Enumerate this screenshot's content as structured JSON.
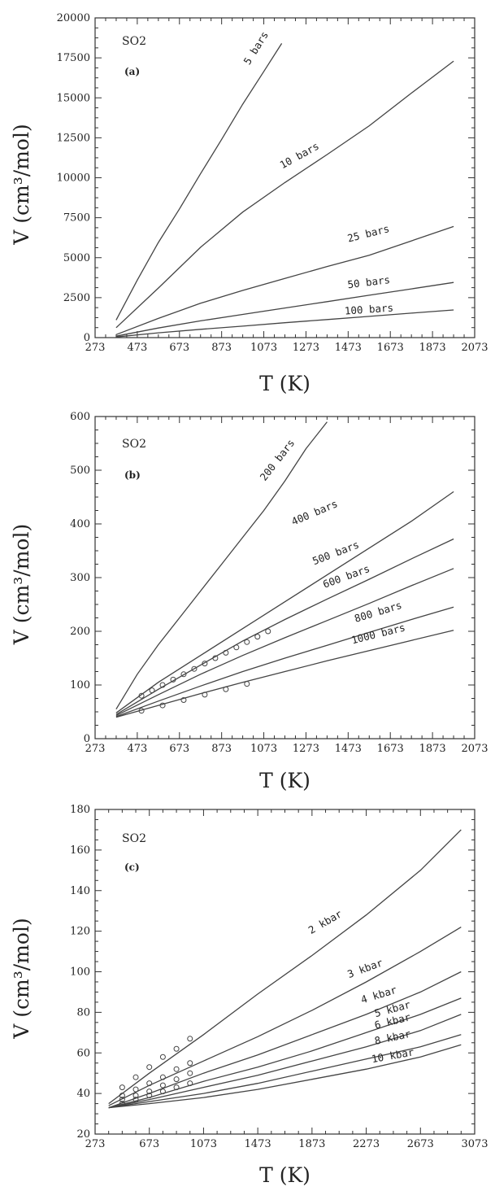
{
  "chart_data": [
    {
      "type": "line",
      "title": "SO2",
      "panel": "(a)",
      "xlabel": "T (K)",
      "ylabel": "V (cm³/mol)",
      "xlim": [
        273,
        2073
      ],
      "ylim": [
        0,
        20000
      ],
      "xticks": [
        "273",
        "473",
        "673",
        "873",
        "1073",
        "1273",
        "1473",
        "1673",
        "1873",
        "2073"
      ],
      "yticks": [
        "0",
        "2500",
        "5000",
        "7500",
        "10000",
        "12500",
        "15000",
        "17500",
        "20000"
      ],
      "series": [
        {
          "name": "5 bars",
          "x": [
            373,
            473,
            573,
            673,
            773,
            873,
            973,
            1073,
            1158
          ],
          "y": [
            1100,
            3600,
            5950,
            8050,
            10250,
            12400,
            14600,
            16650,
            18400
          ]
        },
        {
          "name": "10 bars",
          "x": [
            373,
            573,
            773,
            973,
            1173,
            1373,
            1573,
            1773,
            1973
          ],
          "y": [
            620,
            3100,
            5650,
            7850,
            9700,
            11450,
            13250,
            15300,
            17300
          ]
        },
        {
          "name": "25 bars",
          "x": [
            373,
            573,
            773,
            973,
            1173,
            1373,
            1573,
            1773,
            1973
          ],
          "y": [
            190,
            1200,
            2150,
            2950,
            3700,
            4450,
            5150,
            6050,
            6950
          ]
        },
        {
          "name": "50 bars",
          "x": [
            373,
            573,
            773,
            973,
            1173,
            1373,
            1573,
            1773,
            1973
          ],
          "y": [
            90,
            600,
            1050,
            1450,
            1850,
            2250,
            2650,
            3050,
            3450
          ]
        },
        {
          "name": "100 bars",
          "x": [
            373,
            573,
            773,
            973,
            1173,
            1373,
            1573,
            1773,
            1973
          ],
          "y": [
            40,
            300,
            520,
            720,
            930,
            1130,
            1330,
            1530,
            1730
          ]
        }
      ]
    },
    {
      "type": "line",
      "title": "SO2",
      "panel": "(b)",
      "xlabel": "T (K)",
      "ylabel": "V (cm³/mol)",
      "xlim": [
        273,
        2073
      ],
      "ylim": [
        0,
        600
      ],
      "xticks": [
        "273",
        "473",
        "673",
        "873",
        "1073",
        "1273",
        "1473",
        "1673",
        "1873",
        "2073"
      ],
      "yticks": [
        "0",
        "100",
        "200",
        "300",
        "400",
        "500",
        "600"
      ],
      "series": [
        {
          "name": "200 bars",
          "x": [
            373,
            473,
            573,
            673,
            773,
            873,
            973,
            1073,
            1173,
            1273,
            1373
          ],
          "y": [
            55,
            120,
            175,
            225,
            275,
            325,
            375,
            425,
            480,
            540,
            590
          ]
        },
        {
          "name": "400 bars",
          "x": [
            373,
            573,
            773,
            973,
            1173,
            1373,
            1573,
            1773,
            1973
          ],
          "y": [
            48,
            105,
            155,
            205,
            255,
            305,
            355,
            405,
            460
          ]
        },
        {
          "name": "500 bars",
          "x": [
            373,
            573,
            773,
            973,
            1173,
            1373,
            1573,
            1773,
            1973
          ],
          "y": [
            45,
            92,
            137,
            182,
            222,
            260,
            297,
            335,
            372
          ]
        },
        {
          "name": "600 bars",
          "x": [
            373,
            573,
            773,
            973,
            1173,
            1373,
            1573,
            1773,
            1973
          ],
          "y": [
            43,
            82,
            120,
            155,
            188,
            220,
            252,
            285,
            317
          ]
        },
        {
          "name": "800 bars",
          "x": [
            373,
            573,
            773,
            973,
            1173,
            1373,
            1573,
            1773,
            1973
          ],
          "y": [
            41,
            70,
            98,
            125,
            150,
            174,
            198,
            222,
            245
          ]
        },
        {
          "name": "1000 bars",
          "x": [
            373,
            573,
            773,
            973,
            1173,
            1373,
            1573,
            1773,
            1973
          ],
          "y": [
            40,
            62,
            84,
            105,
            125,
            145,
            164,
            183,
            202
          ]
        }
      ],
      "points": [
        {
          "x": [
            493,
            543,
            593,
            643,
            693,
            743,
            793,
            843,
            893,
            943,
            993,
            1043,
            1093
          ],
          "y": [
            80,
            90,
            100,
            110,
            120,
            130,
            140,
            150,
            160,
            170,
            180,
            190,
            200
          ]
        },
        {
          "x": [
            493,
            593,
            693,
            793,
            893,
            993
          ],
          "y": [
            52,
            62,
            72,
            82,
            92,
            102
          ]
        }
      ]
    },
    {
      "type": "line",
      "title": "SO2",
      "panel": "(c)",
      "xlabel": "T (K)",
      "ylabel": "V (cm³/mol)",
      "xlim": [
        273,
        3073
      ],
      "ylim": [
        20,
        180
      ],
      "xticks": [
        "273",
        "673",
        "1073",
        "1473",
        "1873",
        "2273",
        "2673",
        "3073"
      ],
      "yticks": [
        "20",
        "40",
        "60",
        "80",
        "100",
        "120",
        "140",
        "160",
        "180"
      ],
      "series": [
        {
          "name": "2 kbar",
          "x": [
            373,
            673,
            1073,
            1473,
            1873,
            2273,
            2673,
            2973
          ],
          "y": [
            35,
            50,
            69,
            89,
            108,
            128,
            150,
            170
          ]
        },
        {
          "name": "3 kbar",
          "x": [
            373,
            673,
            1073,
            1473,
            1873,
            2273,
            2673,
            2973
          ],
          "y": [
            34,
            44,
            56,
            68,
            81,
            95,
            110,
            122
          ]
        },
        {
          "name": "4 kbar",
          "x": [
            373,
            673,
            1073,
            1473,
            1873,
            2273,
            2673,
            2973
          ],
          "y": [
            33,
            40,
            50,
            59,
            69,
            79,
            90,
            100
          ]
        },
        {
          "name": "5 kbar",
          "x": [
            373,
            673,
            1073,
            1473,
            1873,
            2273,
            2673,
            2973
          ],
          "y": [
            33,
            38,
            46,
            53,
            61,
            70,
            79,
            87
          ]
        },
        {
          "name": "6 kbar",
          "x": [
            373,
            673,
            1073,
            1473,
            1873,
            2273,
            2673,
            2973
          ],
          "y": [
            33,
            37,
            43,
            49,
            56,
            63,
            71,
            79
          ]
        },
        {
          "name": "8 kbar",
          "x": [
            373,
            673,
            1073,
            1473,
            1873,
            2273,
            2673,
            2973
          ],
          "y": [
            33,
            36,
            40,
            45,
            51,
            57,
            63,
            69
          ]
        },
        {
          "name": "10 kbar",
          "x": [
            373,
            673,
            1073,
            1473,
            1873,
            2273,
            2673,
            2973
          ],
          "y": [
            33,
            35,
            38,
            42,
            47,
            52,
            58,
            64
          ]
        }
      ],
      "points": [
        {
          "x": [
            473,
            573,
            673,
            773,
            873,
            973
          ],
          "y": [
            43,
            48,
            53,
            58,
            62,
            67
          ]
        },
        {
          "x": [
            473,
            573,
            673,
            773,
            873,
            973
          ],
          "y": [
            39,
            42,
            45,
            48,
            52,
            55
          ]
        },
        {
          "x": [
            473,
            573,
            673,
            773,
            873,
            973
          ],
          "y": [
            37,
            39,
            41,
            44,
            47,
            50
          ]
        },
        {
          "x": [
            473,
            573,
            673,
            773,
            873,
            973
          ],
          "y": [
            35,
            37,
            39,
            41,
            43,
            45
          ]
        }
      ]
    }
  ],
  "layout_labels": {
    "formula_main": "SO",
    "formula_sub": "2"
  }
}
